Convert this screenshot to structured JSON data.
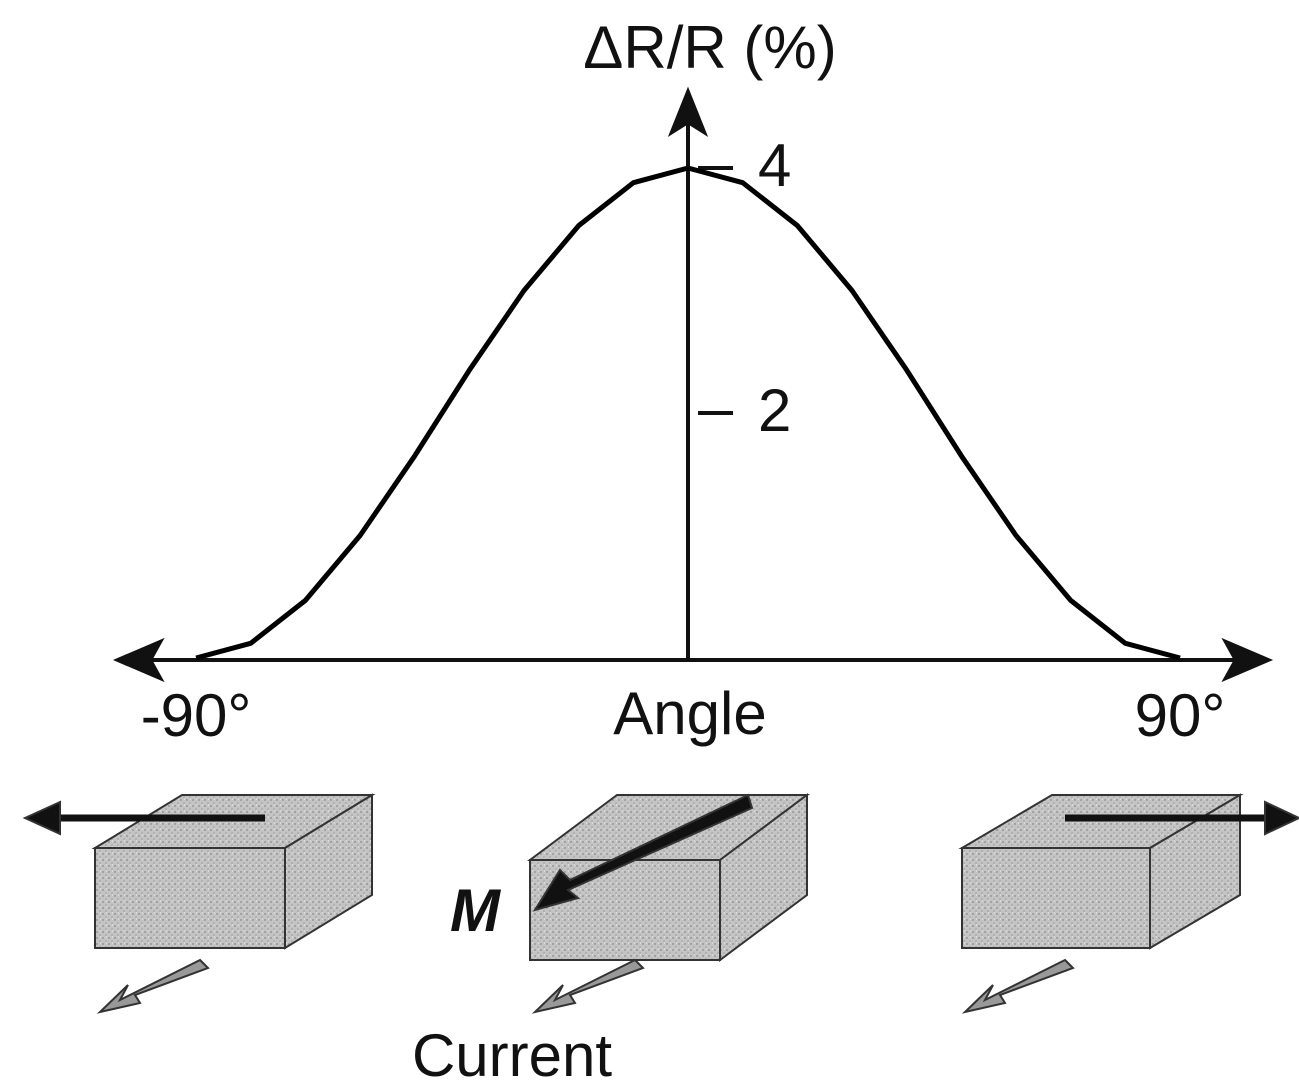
{
  "chart_data": {
    "type": "line",
    "xlabel": "Angle",
    "ylabel": "ΔR/R (%)",
    "x": [
      -90,
      -80,
      -70,
      -60,
      -50,
      -40,
      -30,
      -20,
      -10,
      0,
      10,
      20,
      30,
      40,
      50,
      60,
      70,
      80,
      90
    ],
    "series": [
      {
        "color": "#000000",
        "values": [
          0,
          0.12,
          0.47,
          1,
          1.65,
          2.35,
          3,
          3.53,
          3.88,
          4,
          3.88,
          3.53,
          3,
          2.35,
          1.65,
          1,
          0.47,
          0.12,
          0
        ]
      }
    ],
    "xlim": [
      -103,
      105
    ],
    "ylim": [
      0,
      4.6
    ],
    "xticks": [
      {
        "value": -90,
        "label": "-90°"
      },
      {
        "value": 90,
        "label": "90°"
      }
    ],
    "yticks": [
      2,
      4
    ],
    "annotations": [
      "M",
      "Current"
    ]
  }
}
